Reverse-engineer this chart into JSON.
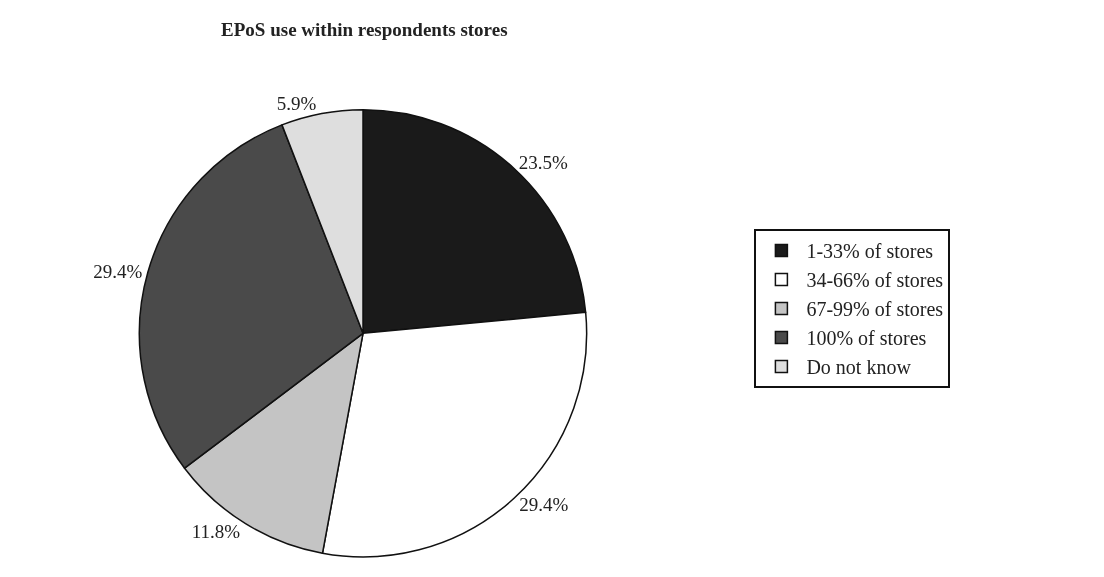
{
  "chart_data": {
    "type": "pie",
    "title": "EPoS use within respondents stores",
    "categories": [
      "1-33% of stores",
      "34-66% of stores",
      "67-99% of stores",
      "100% of stores",
      "Do not know"
    ],
    "values": [
      23.5,
      29.4,
      11.8,
      29.4,
      5.9
    ],
    "value_labels": [
      "23.5%",
      "29.4%",
      "11.8%",
      "29.4%",
      "5.9%"
    ],
    "colors": [
      "#1a1a1a",
      "#ffffff",
      "#c4c4c4",
      "#4a4a4a",
      "#dedede"
    ],
    "legend": "right"
  }
}
